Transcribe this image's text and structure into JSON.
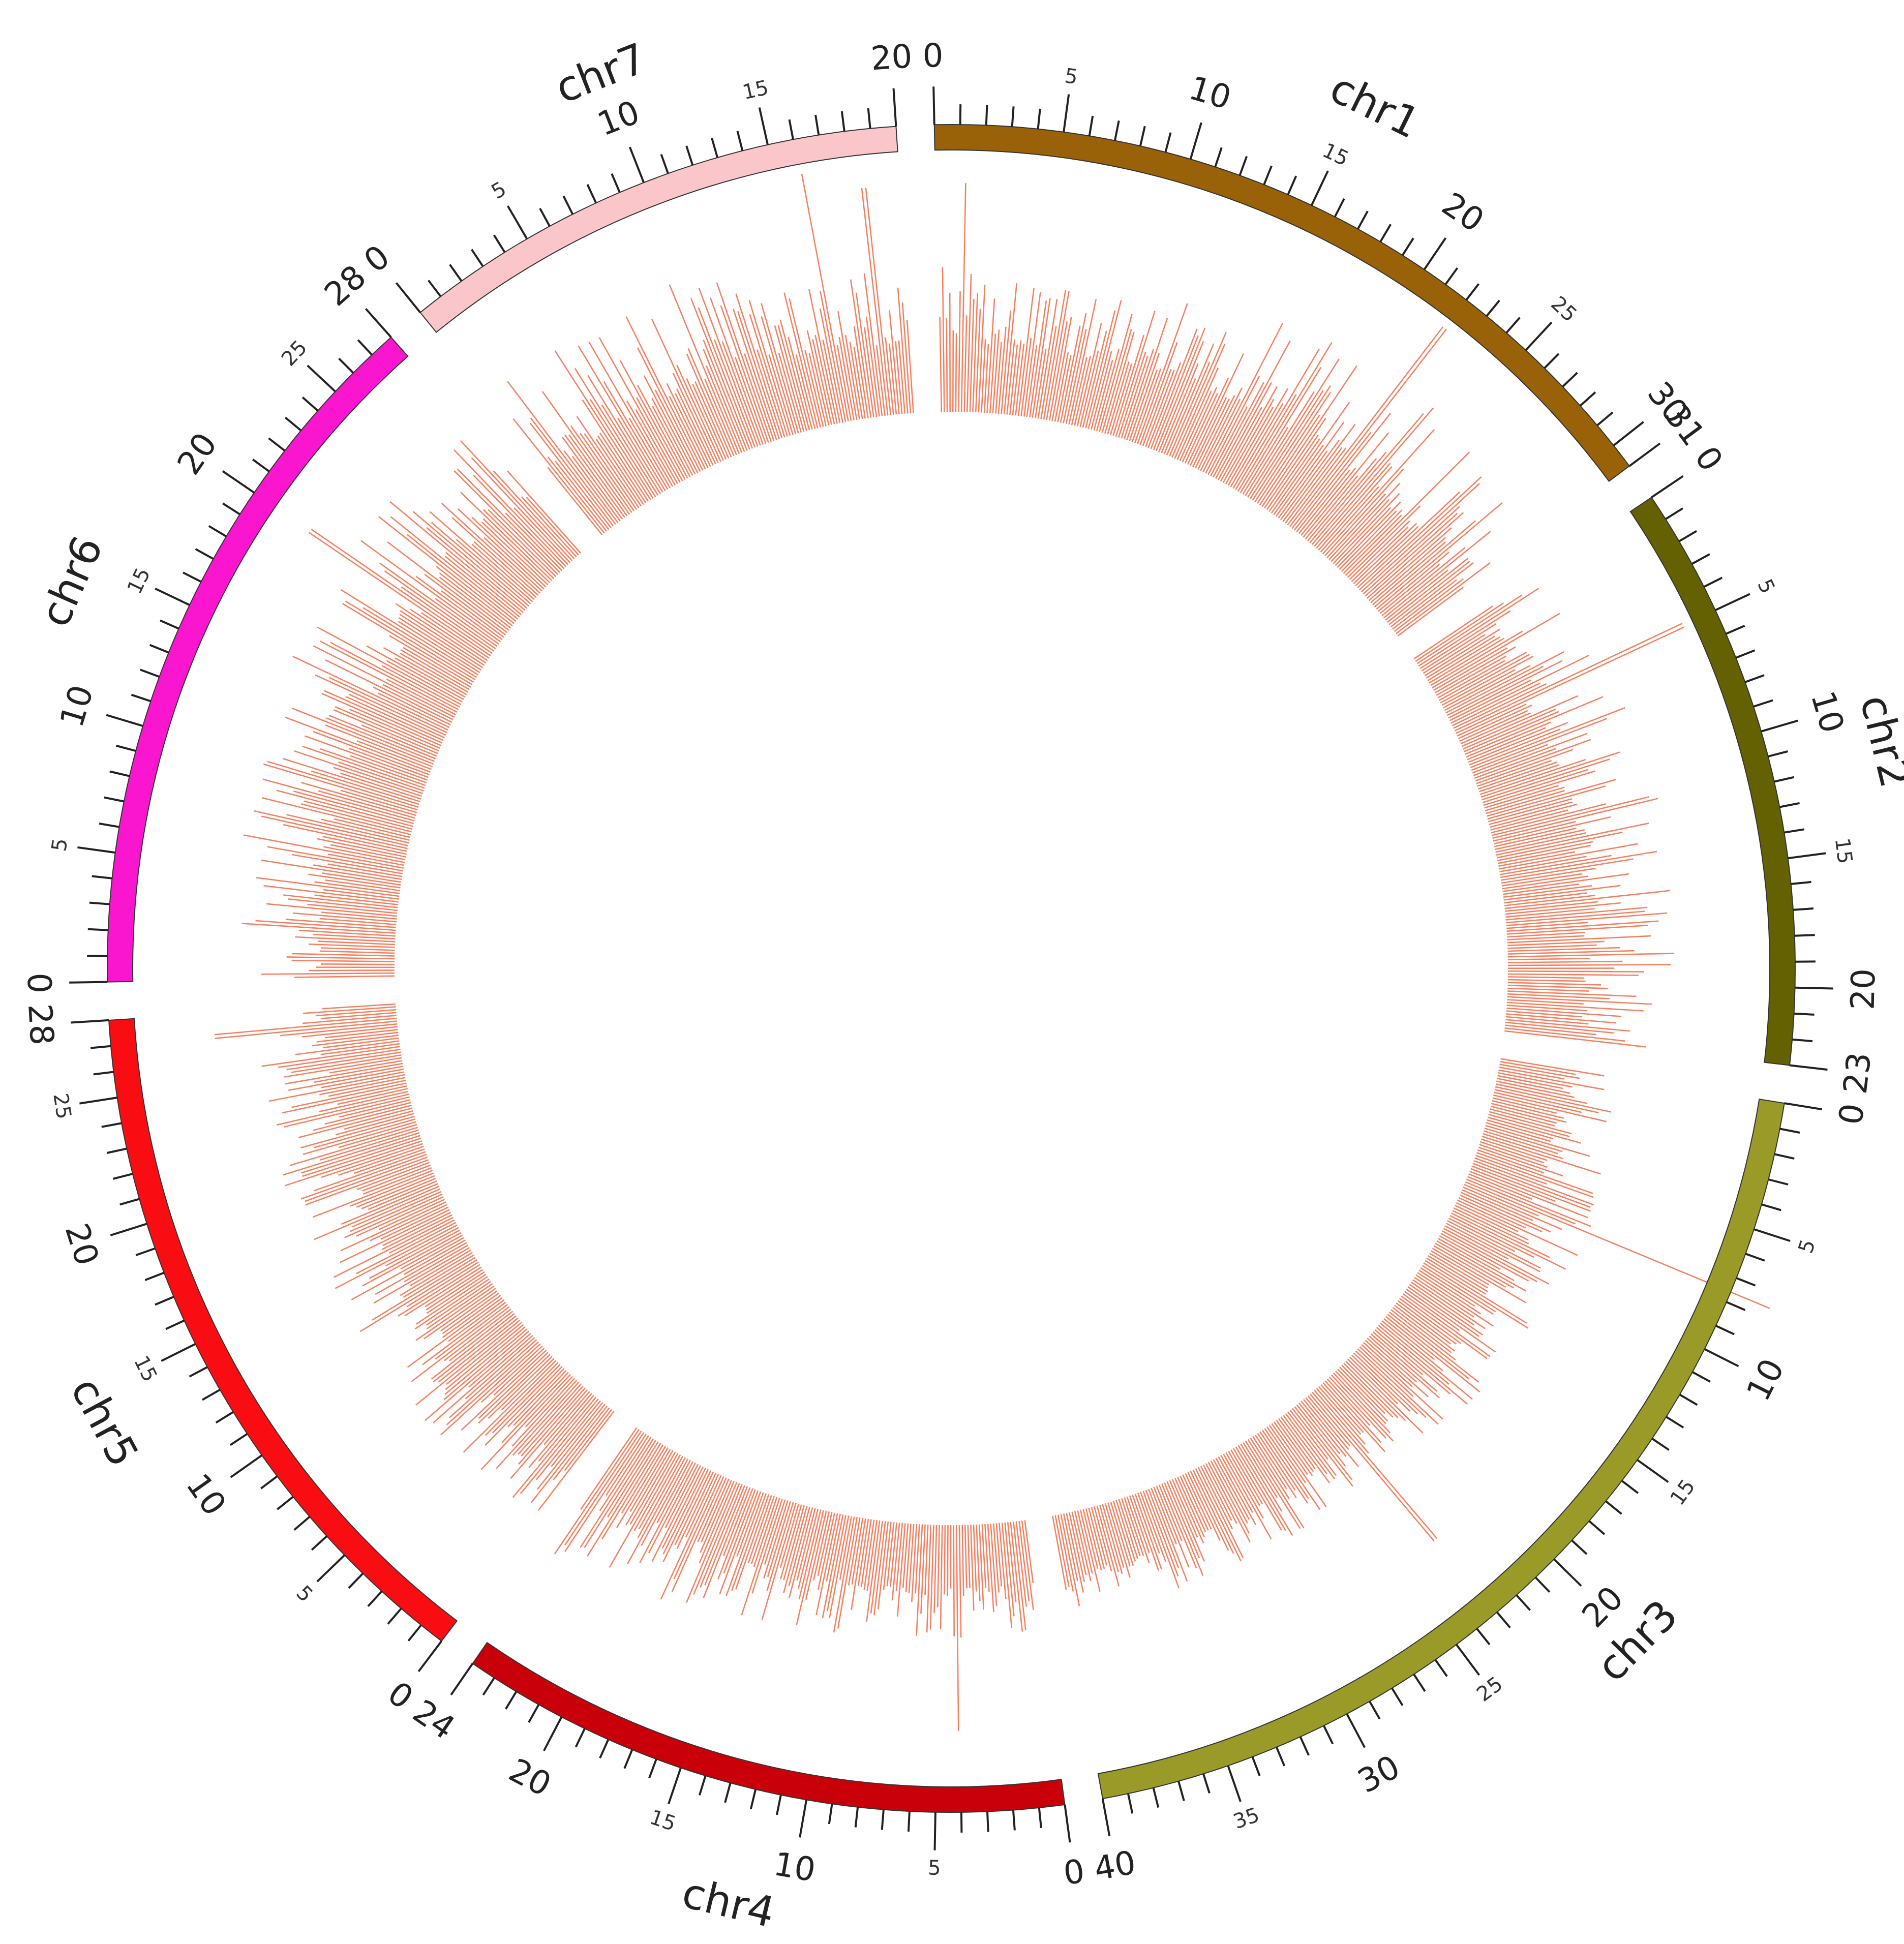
{
  "chart_data": {
    "type": "circos",
    "unit": "",
    "chromosomes": [
      {
        "name": "chr1",
        "length": 31,
        "color": "#996108"
      },
      {
        "name": "chr2",
        "length": 23,
        "color": "#636102"
      },
      {
        "name": "chr3",
        "length": 40,
        "color": "#999A27"
      },
      {
        "name": "chr4",
        "length": 24,
        "color": "#C9000A"
      },
      {
        "name": "chr5",
        "length": 28,
        "color": "#FA0D12"
      },
      {
        "name": "chr6",
        "length": 28,
        "color": "#FA16CF"
      },
      {
        "name": "chr7",
        "length": 20,
        "color": "#FBC6C9"
      }
    ],
    "ticks": {
      "minor_step": 1,
      "labeled_step": 5,
      "large_label_step": 10
    },
    "track": {
      "type": "histogram",
      "color": "#F58060",
      "bins_per_unit": 6,
      "baseline": 0.1,
      "value_range": [
        0,
        1
      ],
      "profiles": [
        {
          "chr": "chr1",
          "points": [
            [
              0,
              0.22
            ],
            [
              5,
              0.18
            ],
            [
              10,
              0.22
            ],
            [
              18,
              0.3
            ],
            [
              25,
              0.3
            ],
            [
              31,
              0.24
            ]
          ]
        },
        {
          "chr": "chr2",
          "points": [
            [
              0,
              0.22
            ],
            [
              10,
              0.28
            ],
            [
              23,
              0.26
            ]
          ]
        },
        {
          "chr": "chr3",
          "points": [
            [
              0,
              0.16
            ],
            [
              8,
              0.2
            ],
            [
              20,
              0.15
            ],
            [
              40,
              0.12
            ]
          ]
        },
        {
          "chr": "chr4",
          "points": [
            [
              0,
              0.14
            ],
            [
              10,
              0.16
            ],
            [
              24,
              0.24
            ]
          ]
        },
        {
          "chr": "chr5",
          "points": [
            [
              0,
              0.2
            ],
            [
              14,
              0.2
            ],
            [
              28,
              0.24
            ]
          ]
        },
        {
          "chr": "chr6",
          "points": [
            [
              0,
              0.24
            ],
            [
              12,
              0.28
            ],
            [
              28,
              0.28
            ]
          ]
        },
        {
          "chr": "chr7",
          "points": [
            [
              0,
              0.3
            ],
            [
              10,
              0.3
            ],
            [
              20,
              0.2
            ]
          ]
        }
      ],
      "peaks": [
        {
          "chr": "chr1",
          "pos": 1.2,
          "value": 0.5
        },
        {
          "chr": "chr1",
          "pos": 22,
          "value": 0.55
        },
        {
          "chr": "chr2",
          "pos": 5,
          "value": 0.55
        },
        {
          "chr": "chr3",
          "pos": 7.6,
          "value": 0.72
        },
        {
          "chr": "chr3",
          "pos": 23,
          "value": 0.42
        },
        {
          "chr": "chr4",
          "pos": 4,
          "value": 0.45
        },
        {
          "chr": "chr5",
          "pos": 27,
          "value": 0.4
        },
        {
          "chr": "chr6",
          "pos": 9,
          "value": 0.42
        },
        {
          "chr": "chr6",
          "pos": 20,
          "value": 0.48
        },
        {
          "chr": "chr7",
          "pos": 11,
          "value": 0.52
        },
        {
          "chr": "chr7",
          "pos": 16,
          "value": 0.55
        },
        {
          "chr": "chr7",
          "pos": 18.5,
          "value": 0.5
        }
      ]
    }
  }
}
